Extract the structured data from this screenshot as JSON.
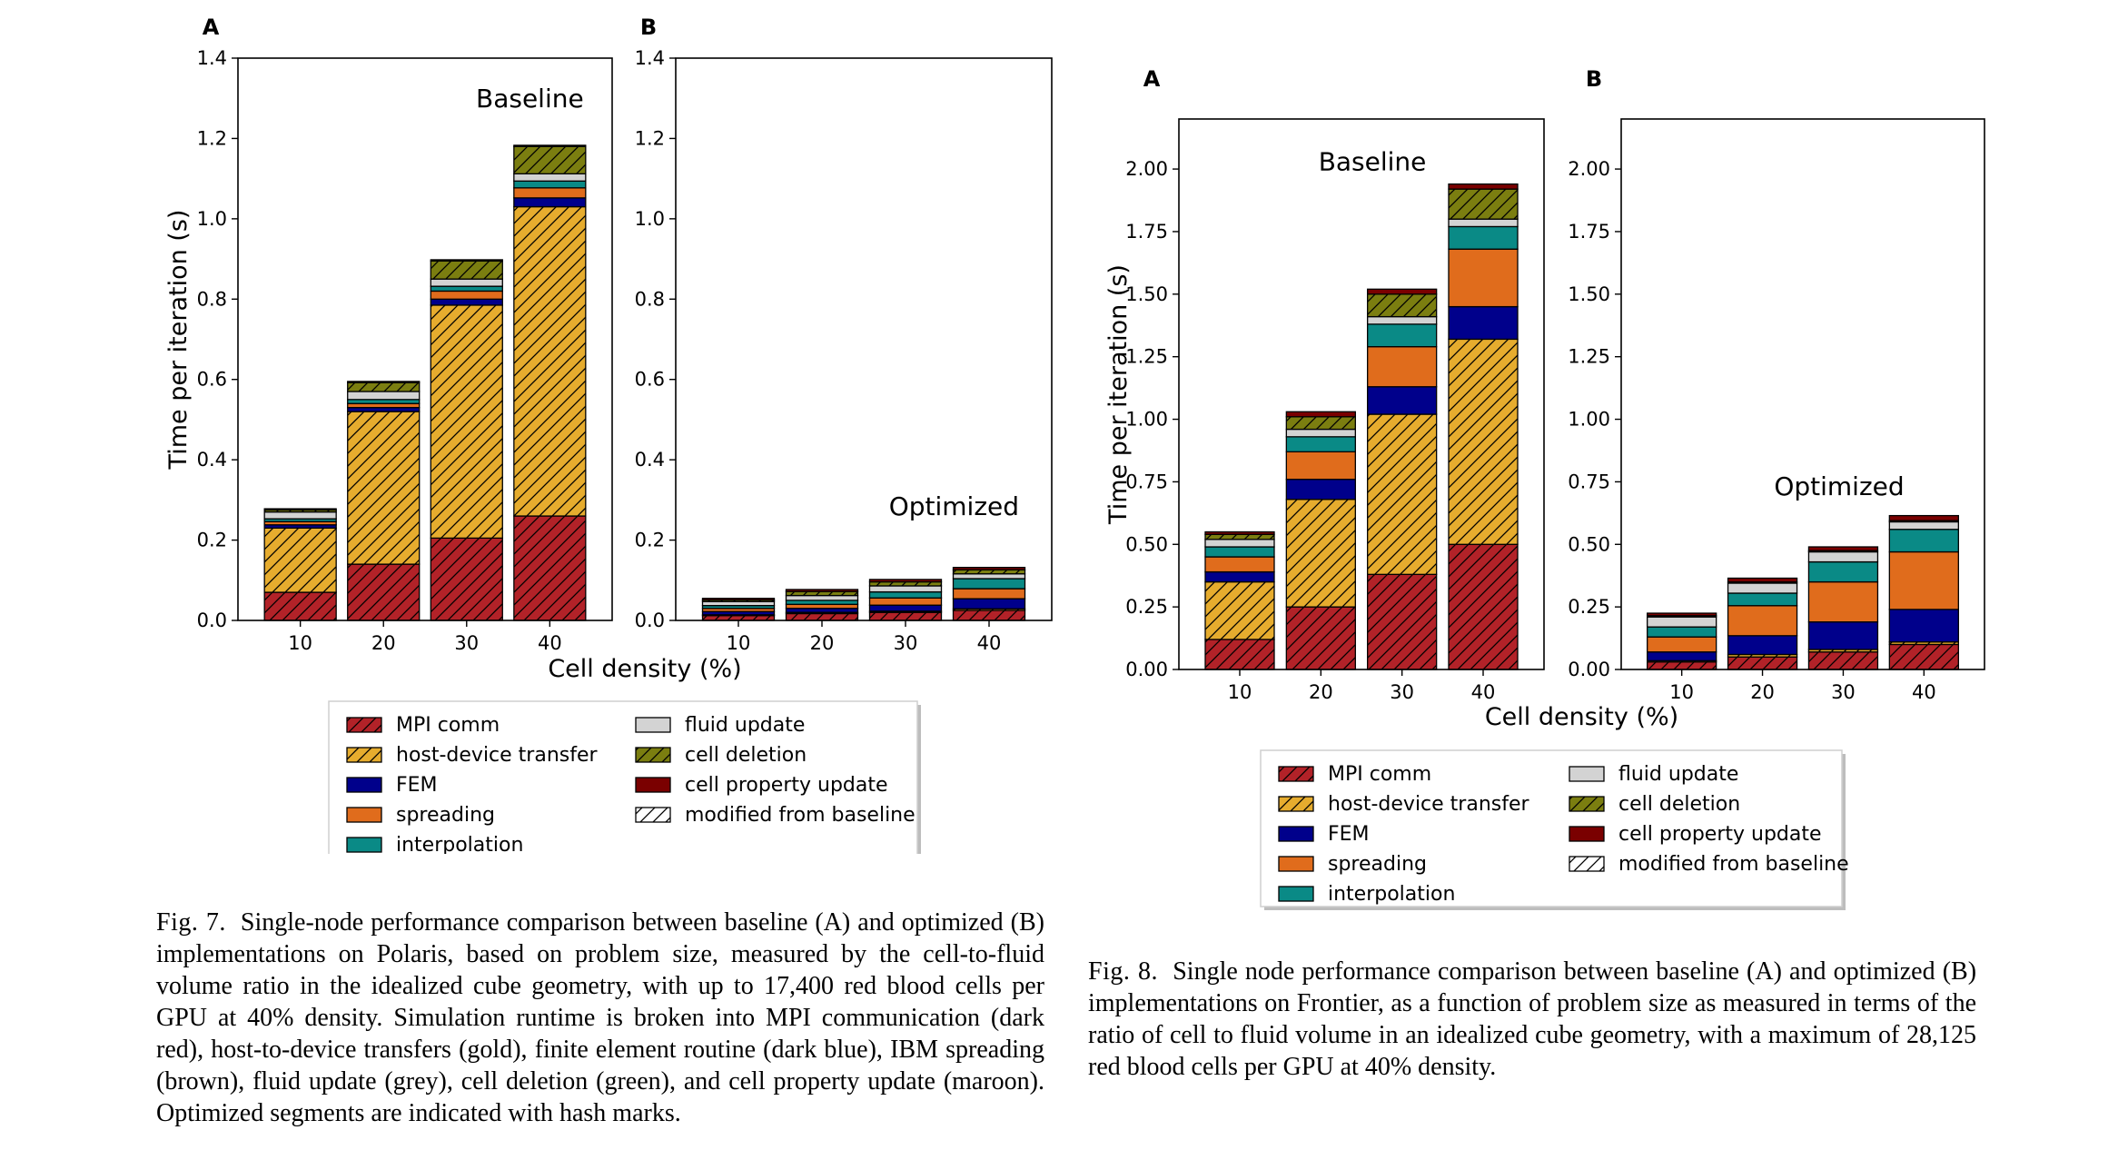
{
  "colors": {
    "MPI comm": "#b22228",
    "host-device transfer": "#e6ac2e",
    "FEM": "#00008b",
    "spreading": "#e06c1c",
    "interpolation": "#0a8a86",
    "fluid update": "#d3d3d3",
    "cell deletion": "#7b7e10",
    "cell property update": "#7a0000"
  },
  "chart_data": [
    {
      "id": "fig7",
      "type": "bar",
      "stacked": true,
      "xlabel": "Cell density (%)",
      "ylabel": "Time per iteration (s)",
      "ylim": [
        0,
        1.4
      ],
      "yticks": [
        "0.0",
        "0.2",
        "0.4",
        "0.6",
        "0.8",
        "1.0",
        "1.2",
        "1.4"
      ],
      "categories": [
        "10",
        "20",
        "30",
        "40"
      ],
      "panels": [
        {
          "letter": "A",
          "annotation": "Baseline",
          "series": [
            {
              "name": "MPI comm",
              "values": [
                0.07,
                0.14,
                0.205,
                0.26
              ],
              "hatch": [
                true,
                true,
                true,
                true
              ]
            },
            {
              "name": "host-device transfer",
              "values": [
                0.16,
                0.38,
                0.58,
                0.77
              ],
              "hatch": [
                true,
                true,
                true,
                true
              ]
            },
            {
              "name": "FEM",
              "values": [
                0.008,
                0.01,
                0.015,
                0.022
              ],
              "hatch": [
                false,
                false,
                false,
                false
              ]
            },
            {
              "name": "spreading",
              "values": [
                0.008,
                0.01,
                0.02,
                0.025
              ],
              "hatch": [
                false,
                false,
                false,
                false
              ]
            },
            {
              "name": "interpolation",
              "values": [
                0.007,
                0.01,
                0.012,
                0.017
              ],
              "hatch": [
                false,
                false,
                false,
                false
              ]
            },
            {
              "name": "fluid update",
              "values": [
                0.017,
                0.02,
                0.018,
                0.018
              ],
              "hatch": [
                false,
                false,
                false,
                false
              ]
            },
            {
              "name": "cell deletion",
              "values": [
                0.005,
                0.022,
                0.045,
                0.068
              ],
              "hatch": [
                true,
                true,
                true,
                true
              ]
            },
            {
              "name": "cell property update",
              "values": [
                0.003,
                0.003,
                0.003,
                0.003
              ],
              "hatch": [
                false,
                false,
                false,
                false
              ]
            }
          ]
        },
        {
          "letter": "B",
          "annotation": "Optimized",
          "series": [
            {
              "name": "MPI comm",
              "values": [
                0.012,
                0.017,
                0.02,
                0.025
              ],
              "hatch": [
                true,
                true,
                true,
                true
              ]
            },
            {
              "name": "host-device transfer",
              "values": [
                0.002,
                0.003,
                0.003,
                0.004
              ],
              "hatch": [
                true,
                true,
                true,
                true
              ]
            },
            {
              "name": "FEM",
              "values": [
                0.008,
                0.01,
                0.015,
                0.025
              ],
              "hatch": [
                false,
                false,
                false,
                false
              ]
            },
            {
              "name": "spreading",
              "values": [
                0.008,
                0.01,
                0.018,
                0.025
              ],
              "hatch": [
                false,
                false,
                false,
                false
              ]
            },
            {
              "name": "interpolation",
              "values": [
                0.007,
                0.01,
                0.015,
                0.025
              ],
              "hatch": [
                false,
                false,
                false,
                false
              ]
            },
            {
              "name": "fluid update",
              "values": [
                0.01,
                0.012,
                0.015,
                0.012
              ],
              "hatch": [
                false,
                false,
                false,
                false
              ]
            },
            {
              "name": "cell deletion",
              "values": [
                0.004,
                0.01,
                0.01,
                0.01
              ],
              "hatch": [
                true,
                true,
                true,
                true
              ]
            },
            {
              "name": "cell property update",
              "values": [
                0.004,
                0.005,
                0.006,
                0.006
              ],
              "hatch": [
                false,
                false,
                false,
                false
              ]
            }
          ]
        }
      ],
      "legend": {
        "placement": "bottom-center",
        "left_column": [
          "MPI comm",
          "host-device transfer",
          "FEM",
          "spreading",
          "interpolation"
        ],
        "right_column": [
          "fluid update",
          "cell deletion",
          "cell property update",
          "modified from baseline"
        ]
      }
    },
    {
      "id": "fig8",
      "type": "bar",
      "stacked": true,
      "xlabel": "Cell density (%)",
      "ylabel": "Time per iteration (s)",
      "ylim": [
        0,
        2.2
      ],
      "yticks": [
        "0.00",
        "0.25",
        "0.50",
        "0.75",
        "1.00",
        "1.25",
        "1.50",
        "1.75",
        "2.00"
      ],
      "categories": [
        "10",
        "20",
        "30",
        "40"
      ],
      "panels": [
        {
          "letter": "A",
          "annotation": "Baseline",
          "series": [
            {
              "name": "MPI comm",
              "values": [
                0.12,
                0.25,
                0.38,
                0.5
              ],
              "hatch": [
                true,
                true,
                true,
                true
              ]
            },
            {
              "name": "host-device transfer",
              "values": [
                0.23,
                0.43,
                0.64,
                0.82
              ],
              "hatch": [
                true,
                true,
                true,
                true
              ]
            },
            {
              "name": "FEM",
              "values": [
                0.04,
                0.08,
                0.11,
                0.13
              ],
              "hatch": [
                false,
                false,
                false,
                false
              ]
            },
            {
              "name": "spreading",
              "values": [
                0.06,
                0.11,
                0.16,
                0.23
              ],
              "hatch": [
                false,
                false,
                false,
                false
              ]
            },
            {
              "name": "interpolation",
              "values": [
                0.04,
                0.06,
                0.09,
                0.09
              ],
              "hatch": [
                false,
                false,
                false,
                false
              ]
            },
            {
              "name": "fluid update",
              "values": [
                0.03,
                0.03,
                0.03,
                0.03
              ],
              "hatch": [
                false,
                false,
                false,
                false
              ]
            },
            {
              "name": "cell deletion",
              "values": [
                0.02,
                0.05,
                0.09,
                0.12
              ],
              "hatch": [
                true,
                true,
                true,
                true
              ]
            },
            {
              "name": "cell property update",
              "values": [
                0.01,
                0.02,
                0.02,
                0.02
              ],
              "hatch": [
                false,
                false,
                false,
                false
              ]
            }
          ]
        },
        {
          "letter": "B",
          "annotation": "Optimized",
          "series": [
            {
              "name": "MPI comm",
              "values": [
                0.03,
                0.05,
                0.07,
                0.1
              ],
              "hatch": [
                true,
                true,
                true,
                true
              ]
            },
            {
              "name": "host-device transfer",
              "values": [
                0.005,
                0.01,
                0.01,
                0.01
              ],
              "hatch": [
                true,
                true,
                true,
                true
              ]
            },
            {
              "name": "FEM",
              "values": [
                0.035,
                0.075,
                0.11,
                0.13
              ],
              "hatch": [
                false,
                false,
                false,
                false
              ]
            },
            {
              "name": "spreading",
              "values": [
                0.06,
                0.12,
                0.16,
                0.23
              ],
              "hatch": [
                false,
                false,
                false,
                false
              ]
            },
            {
              "name": "interpolation",
              "values": [
                0.04,
                0.05,
                0.08,
                0.09
              ],
              "hatch": [
                false,
                false,
                false,
                false
              ]
            },
            {
              "name": "fluid update",
              "values": [
                0.04,
                0.04,
                0.04,
                0.03
              ],
              "hatch": [
                false,
                false,
                false,
                false
              ]
            },
            {
              "name": "cell deletion",
              "values": [
                0.005,
                0.005,
                0.005,
                0.005
              ],
              "hatch": [
                true,
                true,
                true,
                true
              ]
            },
            {
              "name": "cell property update",
              "values": [
                0.01,
                0.015,
                0.015,
                0.02
              ],
              "hatch": [
                false,
                false,
                false,
                false
              ]
            }
          ]
        }
      ],
      "legend": {
        "placement": "bottom-center",
        "left_column": [
          "MPI comm",
          "host-device transfer",
          "FEM",
          "spreading",
          "interpolation"
        ],
        "right_column": [
          "fluid update",
          "cell deletion",
          "cell property update",
          "modified from baseline"
        ]
      }
    }
  ],
  "captions": {
    "fig7": {
      "label": "Fig. 7.",
      "text": "Single-node performance comparison between baseline (A) and optimized (B) implementations on Polaris, based on problem size, measured by the cell-to-fluid volume ratio in the idealized cube geometry, with up to 17,400 red blood cells per GPU at 40% density. Simulation runtime is broken into MPI communication (dark red), host-to-device transfers (gold), finite element routine (dark blue), IBM spreading (brown), fluid update (grey), cell deletion (green), and cell property update (maroon). Optimized segments are indicated with hash marks."
    },
    "fig8": {
      "label": "Fig. 8.",
      "text": "Single node performance comparison between baseline (A) and optimized (B) implementations on Frontier, as a function of problem size as measured in terms of the ratio of cell to fluid volume in an idealized cube geometry, with a maximum of 28,125 red blood cells per GPU at 40% density."
    }
  }
}
